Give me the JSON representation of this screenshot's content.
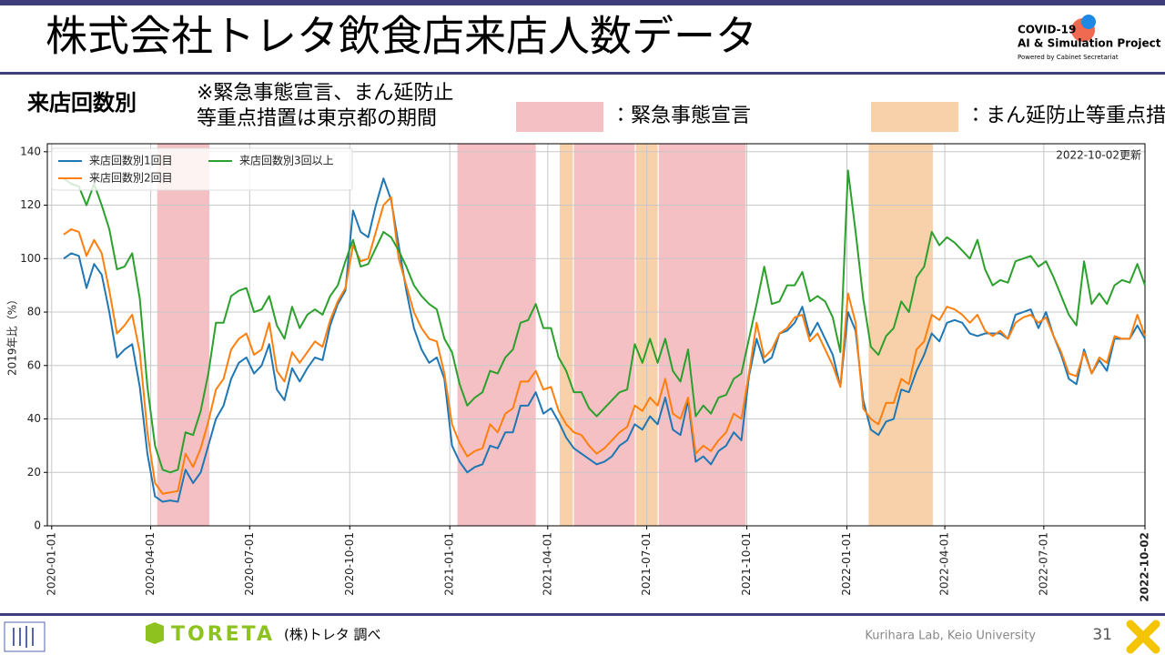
{
  "header": {
    "title": "株式会社トレタ飲食店来店人数データ",
    "logo": [
      "COVID-19",
      "AI & Simulation Project",
      "Powered by Cabinet Secretariat"
    ]
  },
  "subtitle": "来店回数別",
  "note": [
    "※緊急事態宣言、まん延防止",
    "等重点措置は東京都の期間"
  ],
  "footer": {
    "brand": "TORETA",
    "source": "(株)トレタ 調べ",
    "credit": "Kurihara Lab, Keio University",
    "page": "31"
  },
  "chart_data": {
    "type": "line",
    "ylabel": "2019年比（%）",
    "annotation": "2022-10-02更新",
    "legend": "upper left",
    "grid": true,
    "xlim": [
      "2019-12-28",
      "2022-10-02"
    ],
    "xticks": [
      "2020-01-01",
      "2020-04-01",
      "2020-07-01",
      "2020-10-01",
      "2021-01-01",
      "2021-04-01",
      "2021-07-01",
      "2021-10-01",
      "2022-01-01",
      "2022-04-01",
      "2022-07-01",
      "2022-10-02"
    ],
    "ylim": [
      0,
      143
    ],
    "yticks": [
      0,
      20,
      40,
      60,
      80,
      100,
      120,
      140
    ],
    "spans": [
      {
        "label": "：緊急事態宣言",
        "color": "#f4c0c4",
        "ranges": [
          [
            "2020-04-07",
            "2020-05-25"
          ],
          [
            "2021-01-08",
            "2021-03-21"
          ],
          [
            "2021-04-25",
            "2021-06-20"
          ],
          [
            "2021-07-12",
            "2021-09-30"
          ]
        ]
      },
      {
        "label": "：まん延防止等重点措置",
        "color": "#f8d1aa",
        "ranges": [
          [
            "2021-04-12",
            "2021-04-24"
          ],
          [
            "2021-06-21",
            "2021-07-11"
          ],
          [
            "2022-01-21",
            "2022-03-21"
          ]
        ]
      }
    ],
    "x": [
      "2020-01-12",
      "2020-01-19",
      "2020-01-26",
      "2020-02-02",
      "2020-02-09",
      "2020-02-16",
      "2020-02-23",
      "2020-03-01",
      "2020-03-08",
      "2020-03-15",
      "2020-03-22",
      "2020-03-29",
      "2020-04-05",
      "2020-04-12",
      "2020-04-19",
      "2020-04-26",
      "2020-05-03",
      "2020-05-10",
      "2020-05-17",
      "2020-05-24",
      "2020-05-31",
      "2020-06-07",
      "2020-06-14",
      "2020-06-21",
      "2020-06-28",
      "2020-07-05",
      "2020-07-12",
      "2020-07-19",
      "2020-07-26",
      "2020-08-02",
      "2020-08-09",
      "2020-08-16",
      "2020-08-23",
      "2020-08-30",
      "2020-09-06",
      "2020-09-13",
      "2020-09-20",
      "2020-09-27",
      "2020-10-04",
      "2020-10-11",
      "2020-10-18",
      "2020-10-25",
      "2020-11-01",
      "2020-11-08",
      "2020-11-15",
      "2020-11-22",
      "2020-11-29",
      "2020-12-06",
      "2020-12-13",
      "2020-12-20",
      "2020-12-27",
      "2021-01-03",
      "2021-01-10",
      "2021-01-17",
      "2021-01-24",
      "2021-01-31",
      "2021-02-07",
      "2021-02-14",
      "2021-02-21",
      "2021-02-28",
      "2021-03-07",
      "2021-03-14",
      "2021-03-21",
      "2021-03-28",
      "2021-04-04",
      "2021-04-11",
      "2021-04-18",
      "2021-04-25",
      "2021-05-02",
      "2021-05-09",
      "2021-05-16",
      "2021-05-23",
      "2021-05-30",
      "2021-06-06",
      "2021-06-13",
      "2021-06-20",
      "2021-06-27",
      "2021-07-04",
      "2021-07-11",
      "2021-07-18",
      "2021-07-25",
      "2021-08-01",
      "2021-08-08",
      "2021-08-15",
      "2021-08-22",
      "2021-08-29",
      "2021-09-05",
      "2021-09-12",
      "2021-09-19",
      "2021-09-26",
      "2021-10-03",
      "2021-10-10",
      "2021-10-17",
      "2021-10-24",
      "2021-10-31",
      "2021-11-07",
      "2021-11-14",
      "2021-11-21",
      "2021-11-28",
      "2021-12-05",
      "2021-12-12",
      "2021-12-19",
      "2021-12-26",
      "2022-01-02",
      "2022-01-09",
      "2022-01-16",
      "2022-01-23",
      "2022-01-30",
      "2022-02-06",
      "2022-02-13",
      "2022-02-20",
      "2022-02-27",
      "2022-03-06",
      "2022-03-13",
      "2022-03-20",
      "2022-03-27",
      "2022-04-03",
      "2022-04-10",
      "2022-04-17",
      "2022-04-24",
      "2022-05-01",
      "2022-05-08",
      "2022-05-15",
      "2022-05-22",
      "2022-05-29",
      "2022-06-05",
      "2022-06-12",
      "2022-06-19",
      "2022-06-26",
      "2022-07-03",
      "2022-07-10",
      "2022-07-17",
      "2022-07-24",
      "2022-07-31",
      "2022-08-07",
      "2022-08-14",
      "2022-08-21",
      "2022-08-28",
      "2022-09-04",
      "2022-09-11",
      "2022-09-18",
      "2022-09-25",
      "2022-10-02"
    ],
    "series": [
      {
        "name": "来店回数別1回目",
        "color": "#1f77b4",
        "values": [
          100,
          102,
          101,
          89,
          98,
          94,
          80,
          63,
          66,
          68,
          52,
          27,
          11,
          9,
          9.5,
          9,
          21,
          16,
          20,
          30,
          40,
          45,
          55,
          61,
          63,
          57,
          60,
          68,
          51,
          47,
          59,
          54,
          59,
          63,
          62,
          75,
          83,
          88,
          118,
          110,
          108,
          120,
          130,
          122,
          105,
          88,
          74,
          66,
          61,
          63,
          55,
          30,
          24,
          20,
          22,
          23,
          30,
          29,
          35,
          35,
          45,
          45,
          50,
          42,
          44,
          39,
          33,
          29,
          27,
          25,
          23,
          24,
          26,
          30,
          32,
          38,
          36,
          41,
          38,
          48,
          36,
          34,
          47,
          24,
          26,
          23,
          28,
          30,
          35,
          32,
          56,
          70,
          61,
          63,
          72,
          73,
          76,
          82,
          71,
          76,
          70,
          64,
          52,
          80,
          73,
          47,
          36,
          34,
          39,
          40,
          51,
          50,
          58,
          64,
          72,
          69,
          76,
          77,
          76,
          72,
          71,
          72,
          72,
          72,
          70,
          79,
          80,
          81,
          74,
          80,
          71,
          64,
          55,
          53,
          66,
          57,
          62,
          58,
          70,
          70,
          70,
          75,
          70
        ]
      },
      {
        "name": "来店回数別2回目",
        "color": "#ff7f0e",
        "values": [
          109,
          111,
          110,
          101,
          107,
          102,
          88,
          72,
          75,
          79,
          65,
          35,
          16,
          12,
          12.5,
          13,
          27,
          22,
          29,
          39,
          51,
          55,
          66,
          70,
          72,
          64,
          66,
          76,
          58,
          54,
          65,
          61,
          65,
          69,
          67,
          77,
          84,
          89,
          105,
          99,
          100,
          110,
          120,
          123,
          100,
          90,
          80,
          74,
          70,
          69,
          57,
          38,
          31,
          26,
          28,
          29,
          38,
          35,
          42,
          44,
          54,
          54,
          58,
          51,
          52,
          43,
          38,
          35,
          34,
          30,
          27,
          29,
          32,
          35,
          37,
          45,
          43,
          48,
          45,
          55,
          42,
          40,
          48,
          27,
          30,
          28,
          32,
          35,
          42,
          40,
          57,
          76,
          63,
          66,
          72,
          74,
          78,
          79,
          69,
          72,
          66,
          60,
          52,
          87,
          76,
          44,
          40,
          38,
          46,
          46,
          55,
          53,
          66,
          69,
          79,
          77,
          82,
          81,
          79,
          76,
          79,
          73,
          71,
          73,
          70,
          76,
          78,
          79,
          76,
          78,
          71,
          65,
          57,
          56,
          65,
          57,
          63,
          61,
          71,
          70,
          70,
          79,
          71
        ]
      },
      {
        "name": "来店回数別3回以上",
        "color": "#2ca02c",
        "values": [
          130,
          128,
          127,
          120,
          128,
          120,
          111,
          96,
          97,
          102,
          85,
          52,
          30,
          21,
          20,
          21,
          35,
          34,
          43,
          57,
          76,
          76,
          86,
          88,
          89,
          80,
          81,
          86,
          75,
          70,
          82,
          74,
          79,
          81,
          79,
          86,
          90,
          99,
          107,
          97,
          98,
          104,
          110,
          108,
          103,
          97,
          90,
          86,
          83,
          81,
          70,
          65,
          53,
          45,
          48,
          50,
          58,
          57,
          63,
          66,
          76,
          77,
          83,
          74,
          74,
          63,
          58,
          50,
          50,
          44,
          41,
          44,
          47,
          50,
          51,
          68,
          61,
          70,
          61,
          70,
          58,
          54,
          66,
          41,
          45,
          42,
          48,
          49,
          55,
          57,
          70,
          83,
          97,
          83,
          84,
          90,
          90,
          95,
          84,
          86,
          84,
          78,
          65,
          133,
          110,
          85,
          67,
          64,
          71,
          74,
          84,
          80,
          93,
          97,
          110,
          105,
          108,
          106,
          103,
          100,
          107,
          96,
          90,
          92,
          91,
          99,
          100,
          101,
          97,
          99,
          93,
          86,
          79,
          75,
          99,
          83,
          87,
          83,
          90,
          92,
          91,
          98,
          90
        ]
      }
    ]
  }
}
